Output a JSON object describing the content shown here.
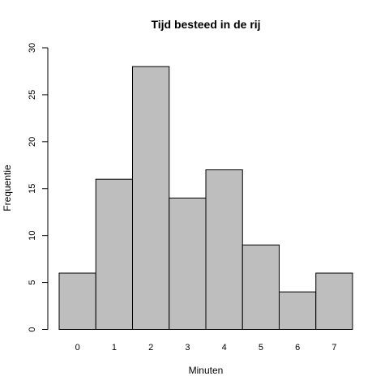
{
  "chart_data": {
    "type": "bar",
    "title": "Tijd besteed in de rij",
    "xlabel": "Minuten",
    "ylabel": "Frequentie",
    "categories": [
      "0",
      "1",
      "2",
      "3",
      "4",
      "5",
      "6",
      "7"
    ],
    "values": [
      6,
      16,
      28,
      14,
      17,
      9,
      4,
      6
    ],
    "ylim": [
      0,
      30
    ],
    "yticks": [
      0,
      5,
      10,
      15,
      20,
      25,
      30
    ],
    "grid": false,
    "colors": {
      "bar_fill": "#bebebe",
      "bar_stroke": "#000000"
    }
  }
}
